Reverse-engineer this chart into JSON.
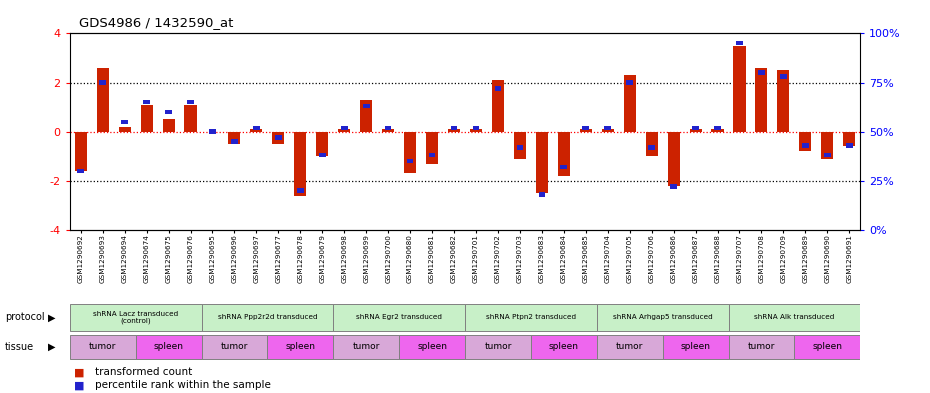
{
  "title": "GDS4986 / 1432590_at",
  "samples": [
    "GSM1290692",
    "GSM1290693",
    "GSM1290694",
    "GSM1290674",
    "GSM1290675",
    "GSM1290676",
    "GSM1290695",
    "GSM1290696",
    "GSM1290697",
    "GSM1290677",
    "GSM1290678",
    "GSM1290679",
    "GSM1290698",
    "GSM1290699",
    "GSM1290700",
    "GSM1290680",
    "GSM1290681",
    "GSM1290682",
    "GSM1290701",
    "GSM1290702",
    "GSM1290703",
    "GSM1290683",
    "GSM1290684",
    "GSM1290685",
    "GSM1290704",
    "GSM1290705",
    "GSM1290706",
    "GSM1290686",
    "GSM1290687",
    "GSM1290688",
    "GSM1290707",
    "GSM1290708",
    "GSM1290709",
    "GSM1290689",
    "GSM1290690",
    "GSM1290691"
  ],
  "red_values": [
    -1.6,
    2.6,
    0.2,
    1.1,
    0.5,
    1.1,
    0.0,
    -0.5,
    0.1,
    -0.5,
    -2.6,
    -1.0,
    0.1,
    1.3,
    0.1,
    -1.7,
    -1.3,
    0.1,
    0.1,
    2.1,
    -1.1,
    -2.5,
    -1.8,
    0.1,
    0.1,
    2.3,
    -1.0,
    -2.2,
    0.1,
    0.1,
    3.5,
    2.6,
    2.5,
    -0.8,
    -1.1,
    -0.6
  ],
  "blue_values_pct": [
    30,
    75,
    55,
    65,
    60,
    65,
    50,
    45,
    52,
    47,
    20,
    38,
    52,
    63,
    52,
    35,
    38,
    52,
    52,
    72,
    42,
    18,
    32,
    52,
    52,
    75,
    42,
    22,
    52,
    52,
    95,
    80,
    78,
    43,
    38,
    43
  ],
  "protocols": [
    {
      "label": "shRNA Lacz transduced\n(control)",
      "start": 0,
      "end": 5
    },
    {
      "label": "shRNA Ppp2r2d transduced",
      "start": 6,
      "end": 11
    },
    {
      "label": "shRNA Egr2 transduced",
      "start": 12,
      "end": 17
    },
    {
      "label": "shRNA Ptpn2 transduced",
      "start": 18,
      "end": 23
    },
    {
      "label": "shRNA Arhgap5 transduced",
      "start": 24,
      "end": 29
    },
    {
      "label": "shRNA Alk transduced",
      "start": 30,
      "end": 35
    }
  ],
  "tissues": [
    {
      "label": "tumor",
      "start": 0,
      "end": 2
    },
    {
      "label": "spleen",
      "start": 3,
      "end": 5
    },
    {
      "label": "tumor",
      "start": 6,
      "end": 8
    },
    {
      "label": "spleen",
      "start": 9,
      "end": 11
    },
    {
      "label": "tumor",
      "start": 12,
      "end": 14
    },
    {
      "label": "spleen",
      "start": 15,
      "end": 17
    },
    {
      "label": "tumor",
      "start": 18,
      "end": 20
    },
    {
      "label": "spleen",
      "start": 21,
      "end": 23
    },
    {
      "label": "tumor",
      "start": 24,
      "end": 26
    },
    {
      "label": "spleen",
      "start": 27,
      "end": 29
    },
    {
      "label": "tumor",
      "start": 30,
      "end": 32
    },
    {
      "label": "spleen",
      "start": 33,
      "end": 35
    }
  ],
  "protocol_color": "#c8f0c8",
  "tumor_color": "#d8a8d8",
  "spleen_color": "#ee66ee",
  "red_color": "#cc2200",
  "blue_color": "#2222cc",
  "bar_width": 0.55
}
